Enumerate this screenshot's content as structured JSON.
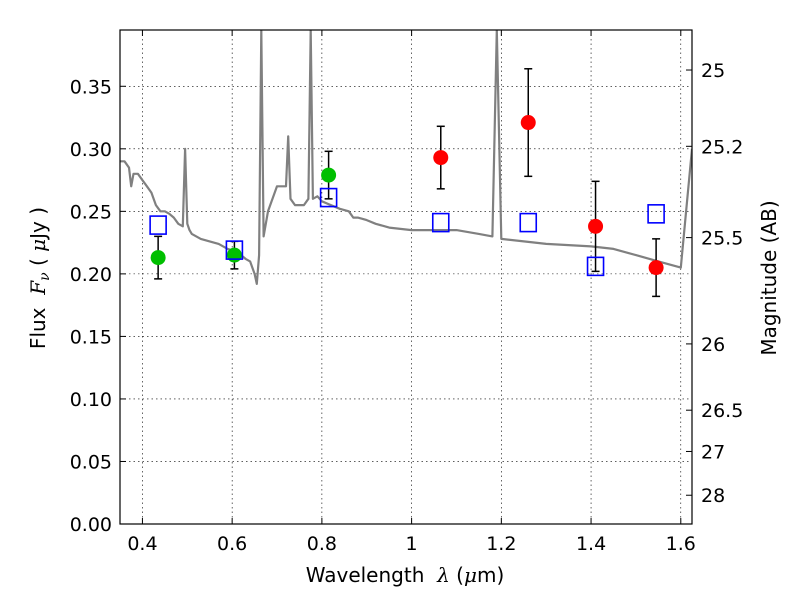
{
  "chart_data": {
    "type": "scatter",
    "xlabel": "Wavelength",
    "xlabel_symbol": "λ",
    "xlabel_unit_open": " (",
    "xlabel_unit_mu": "μ",
    "xlabel_unit_close": "m)",
    "ylabel": "Flux",
    "ylabel_symbol": "F",
    "ylabel_sub": "ν",
    "ylabel_unit_open": "  ( ",
    "ylabel_unit_mu": "μ",
    "ylabel_unit_close": "Jy )",
    "y2label": "Magnitude (AB)",
    "xlim": [
      0.35,
      1.625
    ],
    "ylim": [
      0.0,
      0.395
    ],
    "grid": true,
    "xticks": [
      {
        "v": 0.4,
        "label": "0.4"
      },
      {
        "v": 0.6,
        "label": "0.6"
      },
      {
        "v": 0.8,
        "label": "0.8"
      },
      {
        "v": 1.0,
        "label": "1"
      },
      {
        "v": 1.2,
        "label": "1.2"
      },
      {
        "v": 1.4,
        "label": "1.4"
      },
      {
        "v": 1.6,
        "label": "1.6"
      }
    ],
    "yticks": [
      {
        "v": 0.0,
        "label": "0.00"
      },
      {
        "v": 0.05,
        "label": "0.05"
      },
      {
        "v": 0.1,
        "label": "0.10"
      },
      {
        "v": 0.15,
        "label": "0.15"
      },
      {
        "v": 0.2,
        "label": "0.20"
      },
      {
        "v": 0.25,
        "label": "0.25"
      },
      {
        "v": 0.3,
        "label": "0.30"
      },
      {
        "v": 0.35,
        "label": "0.35"
      }
    ],
    "y2ticks": [
      {
        "flux": 0.363,
        "label": "25"
      },
      {
        "flux": 0.302,
        "label": "25.2"
      },
      {
        "flux": 0.229,
        "label": "25.5"
      },
      {
        "flux": 0.144,
        "label": "26"
      },
      {
        "flux": 0.091,
        "label": "26.5"
      },
      {
        "flux": 0.058,
        "label": "27"
      },
      {
        "flux": 0.023,
        "label": "28"
      }
    ],
    "series": [
      {
        "kind": "line",
        "color": "#808080",
        "x": [
          0.35,
          0.36,
          0.37,
          0.375,
          0.38,
          0.39,
          0.4,
          0.41,
          0.42,
          0.43,
          0.44,
          0.45,
          0.46,
          0.47,
          0.48,
          0.49,
          0.495,
          0.5,
          0.505,
          0.51,
          0.53,
          0.55,
          0.57,
          0.59,
          0.61,
          0.62,
          0.63,
          0.64,
          0.65,
          0.655,
          0.66,
          0.665,
          0.67,
          0.68,
          0.69,
          0.7,
          0.71,
          0.72,
          0.725,
          0.73,
          0.74,
          0.75,
          0.76,
          0.77,
          0.775,
          0.78,
          0.79,
          0.8,
          0.82,
          0.84,
          0.86,
          0.87,
          0.88,
          0.89,
          0.9,
          0.92,
          0.95,
          1.0,
          1.05,
          1.1,
          1.15,
          1.18,
          1.19,
          1.2,
          1.25,
          1.3,
          1.35,
          1.4,
          1.45,
          1.5,
          1.55,
          1.6,
          1.625
        ],
        "y": [
          0.29,
          0.29,
          0.285,
          0.27,
          0.28,
          0.28,
          0.275,
          0.27,
          0.265,
          0.255,
          0.25,
          0.25,
          0.248,
          0.245,
          0.24,
          0.238,
          0.3,
          0.24,
          0.235,
          0.232,
          0.228,
          0.226,
          0.224,
          0.22,
          0.218,
          0.215,
          0.212,
          0.21,
          0.2,
          0.192,
          0.215,
          0.395,
          0.23,
          0.25,
          0.26,
          0.27,
          0.27,
          0.27,
          0.31,
          0.26,
          0.255,
          0.255,
          0.255,
          0.26,
          0.395,
          0.26,
          0.262,
          0.258,
          0.255,
          0.252,
          0.25,
          0.245,
          0.245,
          0.244,
          0.243,
          0.24,
          0.237,
          0.235,
          0.235,
          0.235,
          0.232,
          0.23,
          0.395,
          0.228,
          0.226,
          0.224,
          0.223,
          0.222,
          0.22,
          0.215,
          0.21,
          0.205,
          0.3
        ]
      },
      {
        "kind": "points",
        "marker": "circle",
        "color": "#00bf00",
        "x": [
          0.435,
          0.605,
          0.815
        ],
        "y": [
          0.213,
          0.215,
          0.279
        ],
        "yerr": [
          0.017,
          0.011,
          0.019
        ]
      },
      {
        "kind": "points",
        "marker": "circle",
        "color": "#ff0000",
        "x": [
          1.065,
          1.26,
          1.41,
          1.545
        ],
        "y": [
          0.293,
          0.321,
          0.238,
          0.205
        ],
        "yerr": [
          0.025,
          0.043,
          0.036,
          0.023
        ]
      },
      {
        "kind": "points",
        "marker": "open-square",
        "color": "#0000ff",
        "x": [
          0.435,
          0.605,
          0.815,
          1.065,
          1.26,
          1.41,
          1.545
        ],
        "y": [
          0.239,
          0.219,
          0.261,
          0.241,
          0.241,
          0.206,
          0.248
        ]
      }
    ]
  }
}
